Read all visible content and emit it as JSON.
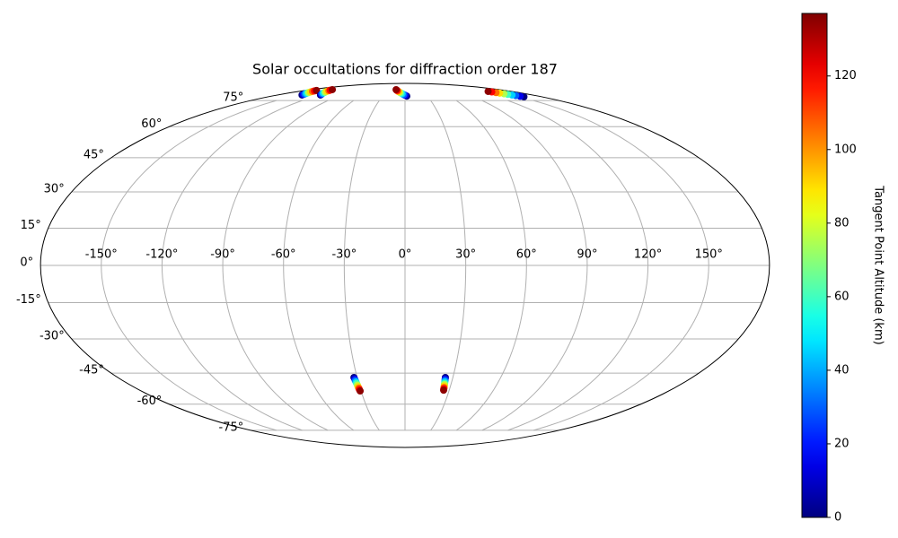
{
  "chart_data": {
    "type": "scatter",
    "projection": "mollweide",
    "title": "Solar occultations for diffraction order 187",
    "colormap": "jet",
    "colorbar_label": "Tangent Point Altitude (km)",
    "clim": [
      0,
      137
    ],
    "cticks": [
      0,
      20,
      40,
      60,
      80,
      100,
      120
    ],
    "grid": true,
    "xticks": [
      {
        "value": -150,
        "label": "-150°"
      },
      {
        "value": -120,
        "label": "-120°"
      },
      {
        "value": -90,
        "label": "-90°"
      },
      {
        "value": -60,
        "label": "-60°"
      },
      {
        "value": -30,
        "label": "-30°"
      },
      {
        "value": 0,
        "label": "0°"
      },
      {
        "value": 30,
        "label": "30°"
      },
      {
        "value": 60,
        "label": "60°"
      },
      {
        "value": 90,
        "label": "90°"
      },
      {
        "value": 120,
        "label": "120°"
      },
      {
        "value": 150,
        "label": "150°"
      }
    ],
    "yticks": [
      {
        "value": -75,
        "label": "-75°"
      },
      {
        "value": -60,
        "label": "-60°"
      },
      {
        "value": -45,
        "label": "-45°"
      },
      {
        "value": -30,
        "label": "-30°"
      },
      {
        "value": -15,
        "label": "-15°"
      },
      {
        "value": 0,
        "label": "0°"
      },
      {
        "value": 15,
        "label": "15°"
      },
      {
        "value": 30,
        "label": "30°"
      },
      {
        "value": 45,
        "label": "45°"
      },
      {
        "value": 60,
        "label": "60°"
      },
      {
        "value": 75,
        "label": "75°"
      }
    ],
    "series": [
      {
        "x": [
          -145,
          -146.6,
          -148.1,
          -149.7,
          -151.2,
          -152.8,
          -154.3,
          -155.9,
          -157.4,
          -159
        ],
        "y": [
          78.8,
          79.2,
          79.6,
          80.0,
          80.4,
          80.7,
          81.1,
          81.5,
          81.9,
          82.3
        ],
        "values": [
          0,
          15,
          30,
          45,
          60,
          75,
          90,
          105,
          120,
          135
        ]
      },
      {
        "x": [
          -119,
          -121.2,
          -123.4,
          -125.7,
          -127.9,
          -130.1,
          -132.3,
          -134.6,
          -136.8,
          -139
        ],
        "y": [
          78.8,
          79.3,
          79.7,
          80.2,
          80.7,
          81.1,
          81.6,
          82.1,
          82.5,
          83
        ],
        "values": [
          0,
          15,
          30,
          45,
          60,
          75,
          90,
          105,
          120,
          135
        ]
      },
      {
        "x": [
          2.4,
          0.2,
          -1.9,
          -4.1,
          -6.2,
          -8.4,
          -10.5,
          -12.7,
          -14.8,
          -17
        ],
        "y": [
          78,
          78.6,
          79.1,
          79.7,
          80.2,
          80.8,
          81.3,
          81.9,
          82.4,
          83
        ],
        "values": [
          0,
          15,
          30,
          45,
          60,
          75,
          90,
          105,
          120,
          135
        ]
      },
      {
        "x": [
          156,
          154.2,
          152.4,
          150.7,
          148.9,
          147.1,
          145.3,
          143.6,
          141.8,
          140
        ],
        "y": [
          77.5,
          77.9,
          78.4,
          78.8,
          79.3,
          79.7,
          80.2,
          80.6,
          81.1,
          81.5
        ],
        "values": [
          0,
          15,
          30,
          45,
          60,
          75,
          90,
          105,
          120,
          135
        ]
      },
      {
        "x": [
          -32,
          -31.8,
          -31.7,
          -31.5,
          -31.4,
          -31.2,
          -31.1,
          -30.9,
          -30.8,
          -30.6
        ],
        "y": [
          -47,
          -47.7,
          -48.4,
          -49.1,
          -49.8,
          -50.6,
          -51.3,
          -52,
          -52.7,
          -53.4
        ],
        "values": [
          0,
          15,
          30,
          45,
          60,
          75,
          90,
          105,
          120,
          135
        ]
      },
      {
        "x": [
          25.3,
          25.4,
          25.5,
          25.6,
          25.7,
          25.8,
          25.9,
          26,
          26.1,
          26.2
        ],
        "y": [
          -47,
          -47.7,
          -48.3,
          -49,
          -49.7,
          -50.3,
          -51,
          -51.7,
          -52.3,
          -53
        ],
        "values": [
          0,
          15,
          30,
          45,
          60,
          75,
          90,
          105,
          120,
          135
        ]
      }
    ]
  }
}
